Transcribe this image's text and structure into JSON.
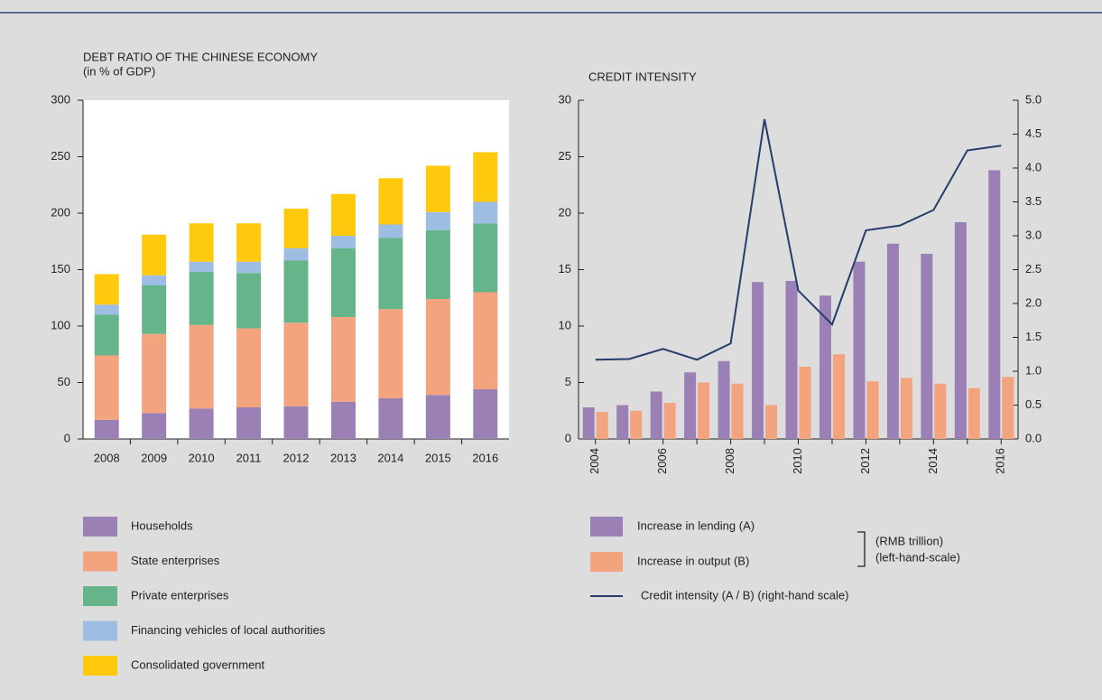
{
  "chart_data": [
    {
      "type": "stacked_bar",
      "title": "DEBT RATIO OF THE CHINESE ECONOMY",
      "subtitle": "(in % of GDP)",
      "categories": [
        "2008",
        "2009",
        "2010",
        "2011",
        "2012",
        "2013",
        "2014",
        "2015",
        "2016"
      ],
      "series": [
        {
          "name": "Households",
          "color": "#9b80b6",
          "values": [
            17,
            23,
            27,
            28,
            29,
            33,
            36,
            39,
            44
          ]
        },
        {
          "name": "State enterprises",
          "color": "#f4a37f",
          "values": [
            57,
            70,
            74,
            70,
            74,
            75,
            79,
            85,
            86
          ]
        },
        {
          "name": "Private enterprises",
          "color": "#66b58a",
          "values": [
            36,
            43,
            47,
            49,
            55,
            61,
            63,
            61,
            61
          ]
        },
        {
          "name": "Financing vehicles of local authorities",
          "color": "#9dbde2",
          "values": [
            9,
            9,
            9,
            10,
            11,
            11,
            12,
            16,
            19
          ]
        },
        {
          "name": "Consolidated government",
          "color": "#ffc90d",
          "values": [
            27,
            36,
            34,
            34,
            35,
            37,
            41,
            41,
            44
          ]
        }
      ],
      "ylim": [
        0,
        300
      ],
      "yticks": [
        0,
        50,
        100,
        150,
        200,
        250,
        300
      ]
    },
    {
      "type": "bar_line",
      "title": "CREDIT INTENSITY",
      "categories": [
        "2004",
        null,
        "2006",
        null,
        "2008",
        null,
        "2010",
        null,
        "2012",
        null,
        "2014",
        null,
        "2016"
      ],
      "series": [
        {
          "name": "Increase in lending (A)",
          "color": "#9b80b6",
          "values": [
            2.8,
            3.0,
            4.2,
            5.9,
            6.9,
            13.9,
            14.0,
            12.7,
            15.7,
            17.3,
            16.4,
            19.2,
            23.8
          ]
        },
        {
          "name": "Increase in output (B)",
          "color": "#f4a37f",
          "values": [
            2.4,
            2.5,
            3.2,
            5.0,
            4.9,
            3.0,
            6.4,
            7.5,
            5.1,
            5.4,
            4.9,
            4.5,
            5.5
          ]
        },
        {
          "name": "Credit intensity (A / B) (right-hand scale)",
          "color": "#253d6b",
          "axis": "y2",
          "values": [
            1.17,
            1.18,
            1.33,
            1.17,
            1.41,
            4.72,
            2.19,
            1.69,
            3.08,
            3.15,
            3.38,
            4.26,
            4.33
          ]
        }
      ],
      "unit_note": [
        "(RMB trillion)",
        "(left-hand-scale)"
      ],
      "ylim": [
        0,
        30
      ],
      "yticks": [
        0,
        5,
        10,
        15,
        20,
        25,
        30
      ],
      "y2lim": [
        0,
        5
      ],
      "y2ticks": [
        {
          "value": 0,
          "label": "0.0"
        },
        0.5,
        {
          "value": 1,
          "label": "1.0"
        },
        1.5,
        {
          "value": 2,
          "label": "2.0"
        },
        2.5,
        {
          "value": 3,
          "label": "3.0"
        },
        3.5,
        {
          "value": 4,
          "label": "4.0"
        },
        4.5,
        {
          "value": 5,
          "label": "5.0"
        }
      ]
    }
  ]
}
